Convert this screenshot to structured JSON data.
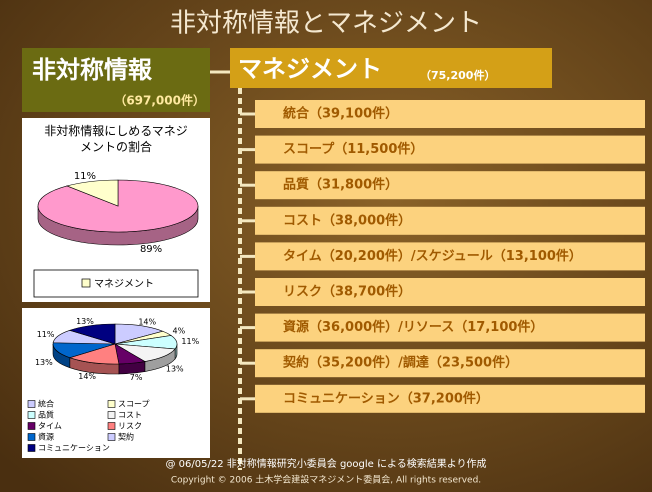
{
  "title": "非対称情報とマネジメント",
  "left_box": {
    "title": "非対称情報",
    "count": "（697,000件）"
  },
  "right_header": {
    "title": "マネジメント",
    "count": "（75,200件）"
  },
  "items": [
    "統合（39,100件）",
    "スコープ（11,500件）",
    "品質（31,800件）",
    "コスト（38,000件）",
    "タイム（20,200件）/スケジュール（13,100件）",
    "リスク（38,700件）",
    "資源（36,000件）/リソース（17,100件）",
    "契約（35,200件）/調達（23,500件）",
    "コミュニケーション（37,200件）"
  ],
  "pie1": {
    "type": "pie",
    "title": "非対称情報にしめるマネジメントの割合",
    "categories": [
      null,
      "マネジメント"
    ],
    "values": [
      89,
      11
    ],
    "value_labels": [
      "89%",
      "11%"
    ],
    "colors": [
      "#ff99cc",
      "#ffffcc"
    ]
  },
  "pie2": {
    "type": "pie",
    "categories": [
      "統合",
      "スコープ",
      "品質",
      "コスト",
      "タイム",
      "リスク",
      "資源",
      "契約",
      "コミュニケーション"
    ],
    "values": [
      14,
      4,
      11,
      13,
      7,
      14,
      13,
      11,
      13
    ],
    "value_labels": [
      "14%",
      "4%",
      "11%",
      "13%",
      "7%",
      "14%",
      "13%",
      "11%",
      "13%"
    ],
    "colors": [
      "#ccccff",
      "#ffffcc",
      "#ccffff",
      "#f4f4f4",
      "#660066",
      "#ff8080",
      "#0066cc",
      "#ccccff",
      "#000080"
    ]
  },
  "footer": {
    "source": "@ 06/05/22 非対称情報研究小委員会 google による検索結果より作成",
    "copyright": "Copyright © 2006 土木学会建設マネジメント委員会, All rights reserved."
  }
}
